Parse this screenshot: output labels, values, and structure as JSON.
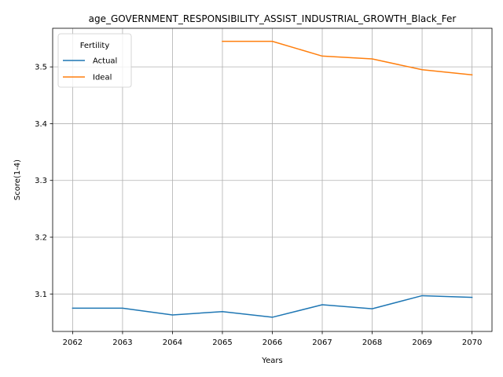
{
  "chart_data": {
    "type": "line",
    "title": "age_GOVERNMENT_RESPONSIBILITY_ASSIST_INDUSTRIAL_GROWTH_Black_Fer",
    "xlabel": "Years",
    "ylabel": "Score(1-4)",
    "x": [
      2062,
      2063,
      2064,
      2065,
      2066,
      2067,
      2068,
      2069,
      2070
    ],
    "xlim": [
      2061.6,
      2070.4
    ],
    "ylim": [
      3.034,
      3.568
    ],
    "yticks": [
      3.1,
      3.2,
      3.3,
      3.4,
      3.5
    ],
    "grid": true,
    "legend": {
      "title": "Fertility",
      "placement": "upper left"
    },
    "series": [
      {
        "name": "Actual",
        "color": "#1f77b4",
        "values": [
          3.075,
          3.075,
          3.063,
          3.069,
          3.059,
          3.081,
          3.074,
          3.097,
          3.094
        ]
      },
      {
        "name": "Ideal",
        "color": "#ff7f0e",
        "values": [
          null,
          null,
          null,
          3.545,
          3.545,
          3.519,
          3.514,
          3.495,
          3.486
        ]
      }
    ]
  }
}
